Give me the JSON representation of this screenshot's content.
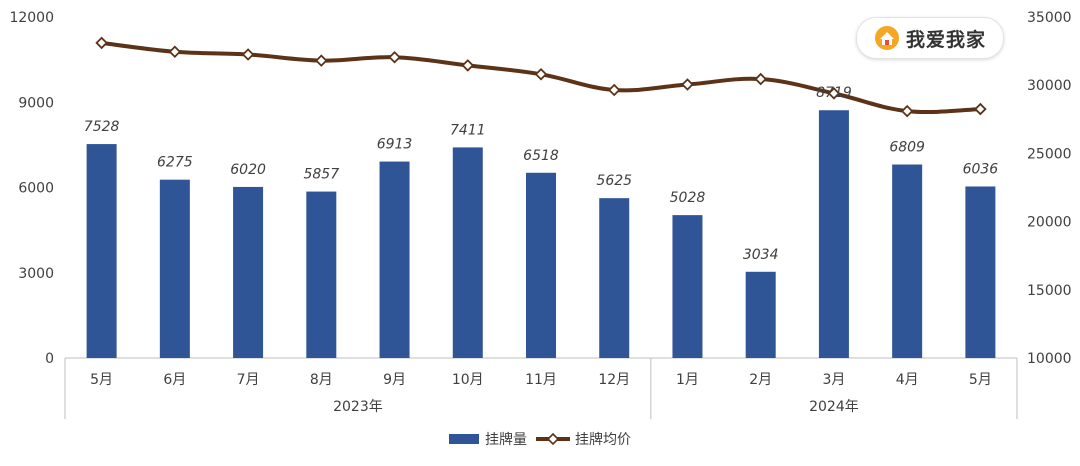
{
  "brand": {
    "logo_text": "我爱我家",
    "accent": "#f5a623"
  },
  "colors": {
    "bar": "#2F5597",
    "line": "#5C3317",
    "marker_fill": "#ffffff"
  },
  "chart_data": {
    "type": "bar",
    "categories": [
      "5月",
      "6月",
      "7月",
      "8月",
      "9月",
      "10月",
      "11月",
      "12月",
      "1月",
      "2月",
      "3月",
      "4月",
      "5月"
    ],
    "groups": [
      {
        "label": "2023年",
        "count": 8
      },
      {
        "label": "2024年",
        "count": 5
      }
    ],
    "series": [
      {
        "name": "挂牌量",
        "type": "bar",
        "axis": "left",
        "values": [
          7528,
          6275,
          6020,
          5857,
          6913,
          7411,
          6518,
          5625,
          5028,
          3034,
          8719,
          6809,
          6036
        ]
      },
      {
        "name": "挂牌均价",
        "type": "line",
        "axis": "right",
        "values": [
          33100,
          32450,
          32250,
          31800,
          32050,
          31450,
          30800,
          29650,
          30050,
          30450,
          29400,
          28100,
          28250
        ]
      }
    ],
    "y_left": {
      "range": [
        0,
        12000
      ],
      "ticks": [
        "0",
        "3000",
        "6000",
        "9000",
        "12000"
      ]
    },
    "y_right": {
      "range": [
        10000,
        35000
      ],
      "ticks": [
        "10000",
        "15000",
        "20000",
        "25000",
        "30000",
        "35000"
      ]
    },
    "legend": {
      "placement": "bottom-center"
    },
    "grid": false
  }
}
